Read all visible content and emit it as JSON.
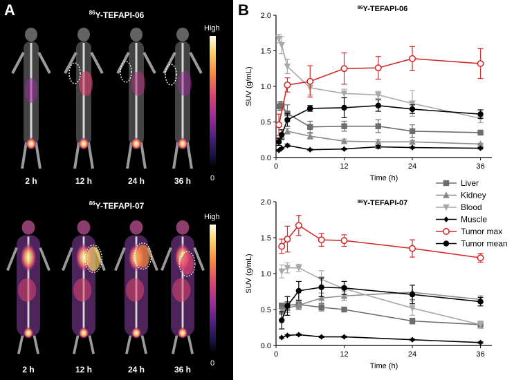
{
  "panel_a": {
    "letter": "A",
    "rows": [
      {
        "title_sup": "86",
        "title_main": "Y-TEFAPI-06",
        "timepoints": [
          "2 h",
          "12 h",
          "24 h",
          "36 h"
        ],
        "colorbar_high": "High",
        "colorbar_low": "0"
      },
      {
        "title_sup": "86",
        "title_main": "Y-TEFAPI-07",
        "timepoints": [
          "2 h",
          "12 h",
          "24 h",
          "36 h"
        ],
        "colorbar_high": "High",
        "colorbar_low": "0"
      }
    ]
  },
  "panel_b": {
    "letter": "B"
  },
  "legend": {
    "colors": {
      "Liver": "#6d6d6d",
      "Kidney": "#8a8a8a",
      "Blood": "#a8a8a8",
      "Muscle": "#000000",
      "Tumor max": "#d42a2a",
      "Tumor mean": "#000000"
    },
    "markers": {
      "Liver": "square",
      "Kidney": "triangle-up",
      "Blood": "triangle-down",
      "Muscle": "diamond",
      "Tumor max": "circle-open",
      "Tumor mean": "circle"
    }
  },
  "chart_data": [
    {
      "type": "line",
      "title_sup": "86",
      "title_main": "Y-TEFAPI-06",
      "xlabel": "Time (h)",
      "ylabel": "SUV (g/mL)",
      "xlim": [
        0,
        38
      ],
      "ylim": [
        0,
        2.0
      ],
      "xticks": [
        0,
        12,
        24,
        36
      ],
      "yticks": [
        "0.0",
        "0.5",
        "1.0",
        "1.5",
        "2.0"
      ],
      "series": [
        {
          "name": "Liver",
          "x": [
            0.5,
            1,
            2,
            6,
            12,
            18,
            24,
            36
          ],
          "y": [
            0.72,
            0.73,
            0.62,
            0.43,
            0.44,
            0.44,
            0.37,
            0.35
          ],
          "err": [
            0.06,
            0.06,
            0.12,
            0.08,
            0.07,
            0.09,
            0.09,
            0.02
          ]
        },
        {
          "name": "Kidney",
          "x": [
            0.5,
            1,
            2,
            6,
            12,
            18,
            24,
            36
          ],
          "y": [
            0.25,
            0.3,
            0.37,
            0.3,
            0.23,
            0.22,
            0.22,
            0.19
          ],
          "err": [
            0.03,
            0.03,
            0.04,
            0.04,
            0.03,
            0.03,
            0.02,
            0.01
          ]
        },
        {
          "name": "Blood",
          "x": [
            0.5,
            1,
            2,
            6,
            12,
            18,
            24,
            36
          ],
          "y": [
            1.67,
            1.58,
            1.28,
            0.98,
            0.9,
            0.88,
            0.76,
            0.55
          ],
          "err": [
            0.06,
            0.12,
            0.1,
            0.1,
            0.06,
            0.05,
            0.18,
            0.06
          ]
        },
        {
          "name": "Muscle",
          "x": [
            0.5,
            1,
            2,
            6,
            12,
            18,
            24,
            36
          ],
          "y": [
            0.1,
            0.13,
            0.17,
            0.11,
            0.12,
            0.15,
            0.14,
            0.13
          ],
          "err": [
            0.01,
            0.01,
            0.02,
            0.01,
            0.01,
            0.02,
            0.01,
            0.01
          ]
        },
        {
          "name": "Tumor max",
          "x": [
            0.5,
            2,
            6,
            12,
            18,
            24,
            36
          ],
          "y": [
            0.46,
            1.02,
            1.07,
            1.25,
            1.26,
            1.39,
            1.32
          ],
          "err": [
            0.15,
            0.1,
            0.22,
            0.22,
            0.16,
            0.17,
            0.21
          ]
        },
        {
          "name": "Tumor mean",
          "x": [
            0.5,
            1,
            2,
            6,
            12,
            18,
            24,
            36
          ],
          "y": [
            0.22,
            0.32,
            0.53,
            0.69,
            0.7,
            0.73,
            0.68,
            0.61
          ],
          "err": [
            0.05,
            0.07,
            0.09,
            0.04,
            0.14,
            0.08,
            0.06,
            0.06
          ]
        }
      ]
    },
    {
      "type": "line",
      "title_sup": "86",
      "title_main": "Y-TEFAPI-07",
      "xlabel": "Time (h)",
      "ylabel": "SUV (g/mL)",
      "xlim": [
        0,
        38
      ],
      "ylim": [
        0,
        2.0
      ],
      "xticks": [
        0,
        12,
        24,
        36
      ],
      "yticks": [
        "0.0",
        "0.5",
        "1.0",
        "1.5",
        "2.0"
      ],
      "series": [
        {
          "name": "Liver",
          "x": [
            1,
            2,
            4,
            8,
            12,
            24,
            36
          ],
          "y": [
            0.55,
            0.56,
            0.57,
            0.53,
            0.5,
            0.34,
            0.29
          ],
          "err": [
            0.04,
            0.05,
            0.06,
            0.05,
            0.03,
            0.04,
            0.05
          ]
        },
        {
          "name": "Kidney",
          "x": [
            1,
            2,
            4,
            8,
            12,
            24,
            36
          ],
          "y": [
            0.48,
            0.52,
            0.56,
            0.66,
            0.69,
            0.74,
            0.64
          ],
          "err": [
            0.05,
            0.06,
            0.06,
            0.07,
            0.06,
            0.1,
            0.05
          ]
        },
        {
          "name": "Blood",
          "x": [
            1,
            2,
            4,
            8,
            12,
            24,
            36
          ],
          "y": [
            1.03,
            1.08,
            1.08,
            0.92,
            0.79,
            0.52,
            0.29
          ],
          "err": [
            0.09,
            0.07,
            0.05,
            0.12,
            0.1,
            0.1,
            0.05
          ]
        },
        {
          "name": "Muscle",
          "x": [
            1,
            2,
            4,
            8,
            12,
            24,
            36
          ],
          "y": [
            0.11,
            0.14,
            0.15,
            0.12,
            0.12,
            0.08,
            0.04
          ],
          "err": [
            0.01,
            0.01,
            0.01,
            0.01,
            0.01,
            0.01,
            0.01
          ]
        },
        {
          "name": "Tumor max",
          "x": [
            1,
            2,
            4,
            8,
            12,
            24,
            36
          ],
          "y": [
            1.38,
            1.48,
            1.67,
            1.47,
            1.46,
            1.35,
            1.22
          ],
          "err": [
            0.1,
            0.18,
            0.14,
            0.09,
            0.08,
            0.12,
            0.06
          ]
        },
        {
          "name": "Tumor mean",
          "x": [
            1,
            2,
            4,
            8,
            12,
            24,
            36
          ],
          "y": [
            0.35,
            0.55,
            0.76,
            0.81,
            0.8,
            0.71,
            0.61
          ],
          "err": [
            0.12,
            0.13,
            0.13,
            0.13,
            0.09,
            0.13,
            0.06
          ]
        }
      ]
    }
  ]
}
